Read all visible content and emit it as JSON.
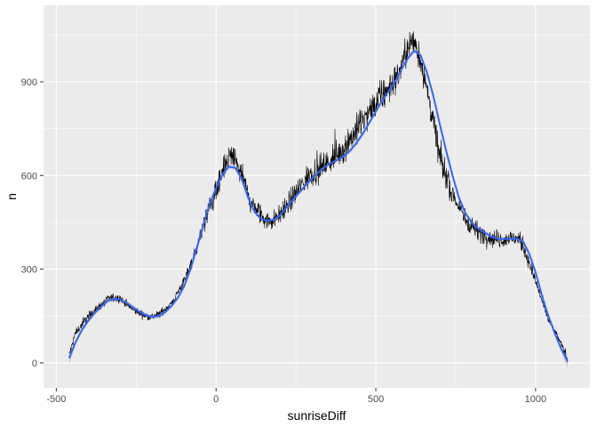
{
  "chart_data": {
    "type": "line",
    "xlabel": "sunriseDiff",
    "ylabel": "n",
    "xlim": [
      -540,
      1170
    ],
    "ylim": [
      -80,
      1145
    ],
    "x_ticks": [
      -500,
      0,
      500,
      1000
    ],
    "x_tick_labels": [
      "-500",
      "0",
      "500",
      "1000"
    ],
    "y_ticks": [
      0,
      300,
      600,
      900
    ],
    "y_tick_labels": [
      "0",
      "300",
      "600",
      "900"
    ],
    "grid": true,
    "legend": "none",
    "colors": {
      "panel_background": "#ebebeb",
      "grid_major": "#ffffff",
      "raw_line": "#000000",
      "smooth_line": "#3366ff",
      "confidence_band": "#999999"
    },
    "series": [
      {
        "kind": "raw",
        "x_range": [
          -460,
          1100
        ],
        "noise_sd": 18,
        "anchors": [
          [
            -460,
            25
          ],
          [
            -440,
            95
          ],
          [
            -400,
            150
          ],
          [
            -360,
            185
          ],
          [
            -330,
            210
          ],
          [
            -300,
            205
          ],
          [
            -260,
            170
          ],
          [
            -220,
            150
          ],
          [
            -200,
            148
          ],
          [
            -180,
            155
          ],
          [
            -140,
            190
          ],
          [
            -100,
            260
          ],
          [
            -60,
            370
          ],
          [
            -20,
            500
          ],
          [
            20,
            600
          ],
          [
            40,
            660
          ],
          [
            60,
            650
          ],
          [
            80,
            600
          ],
          [
            110,
            510
          ],
          [
            150,
            460
          ],
          [
            180,
            455
          ],
          [
            220,
            500
          ],
          [
            260,
            560
          ],
          [
            300,
            610
          ],
          [
            350,
            640
          ],
          [
            400,
            690
          ],
          [
            450,
            760
          ],
          [
            500,
            830
          ],
          [
            540,
            880
          ],
          [
            570,
            920
          ],
          [
            600,
            1010
          ],
          [
            620,
            1030
          ],
          [
            640,
            970
          ],
          [
            660,
            880
          ],
          [
            680,
            770
          ],
          [
            700,
            660
          ],
          [
            740,
            540
          ],
          [
            780,
            460
          ],
          [
            820,
            420
          ],
          [
            860,
            400
          ],
          [
            900,
            395
          ],
          [
            940,
            400
          ],
          [
            960,
            380
          ],
          [
            980,
            320
          ],
          [
            1010,
            230
          ],
          [
            1040,
            140
          ],
          [
            1070,
            80
          ],
          [
            1090,
            40
          ],
          [
            1100,
            10
          ]
        ]
      },
      {
        "kind": "smooth",
        "points": [
          [
            -460,
            15
          ],
          [
            -440,
            65
          ],
          [
            -420,
            105
          ],
          [
            -400,
            135
          ],
          [
            -380,
            160
          ],
          [
            -360,
            180
          ],
          [
            -340,
            198
          ],
          [
            -320,
            205
          ],
          [
            -300,
            203
          ],
          [
            -280,
            192
          ],
          [
            -260,
            178
          ],
          [
            -240,
            163
          ],
          [
            -220,
            153
          ],
          [
            -200,
            147
          ],
          [
            -180,
            150
          ],
          [
            -160,
            162
          ],
          [
            -140,
            182
          ],
          [
            -120,
            208
          ],
          [
            -100,
            245
          ],
          [
            -80,
            300
          ],
          [
            -60,
            370
          ],
          [
            -40,
            440
          ],
          [
            -20,
            510
          ],
          [
            0,
            560
          ],
          [
            20,
            605
          ],
          [
            40,
            628
          ],
          [
            60,
            625
          ],
          [
            80,
            590
          ],
          [
            100,
            530
          ],
          [
            120,
            485
          ],
          [
            140,
            462
          ],
          [
            160,
            455
          ],
          [
            180,
            458
          ],
          [
            200,
            472
          ],
          [
            220,
            498
          ],
          [
            240,
            522
          ],
          [
            260,
            545
          ],
          [
            280,
            568
          ],
          [
            300,
            590
          ],
          [
            320,
            610
          ],
          [
            340,
            627
          ],
          [
            360,
            640
          ],
          [
            380,
            650
          ],
          [
            400,
            662
          ],
          [
            420,
            680
          ],
          [
            440,
            705
          ],
          [
            460,
            735
          ],
          [
            480,
            770
          ],
          [
            500,
            805
          ],
          [
            520,
            840
          ],
          [
            540,
            870
          ],
          [
            560,
            900
          ],
          [
            580,
            940
          ],
          [
            600,
            975
          ],
          [
            620,
            1000
          ],
          [
            640,
            985
          ],
          [
            660,
            930
          ],
          [
            680,
            855
          ],
          [
            700,
            765
          ],
          [
            720,
            680
          ],
          [
            740,
            600
          ],
          [
            760,
            530
          ],
          [
            780,
            480
          ],
          [
            800,
            450
          ],
          [
            820,
            430
          ],
          [
            840,
            418
          ],
          [
            860,
            405
          ],
          [
            880,
            398
          ],
          [
            900,
            396
          ],
          [
            920,
            398
          ],
          [
            940,
            398
          ],
          [
            960,
            390
          ],
          [
            980,
            350
          ],
          [
            1000,
            290
          ],
          [
            1020,
            215
          ],
          [
            1040,
            150
          ],
          [
            1060,
            95
          ],
          [
            1080,
            45
          ],
          [
            1100,
            5
          ]
        ]
      }
    ]
  }
}
